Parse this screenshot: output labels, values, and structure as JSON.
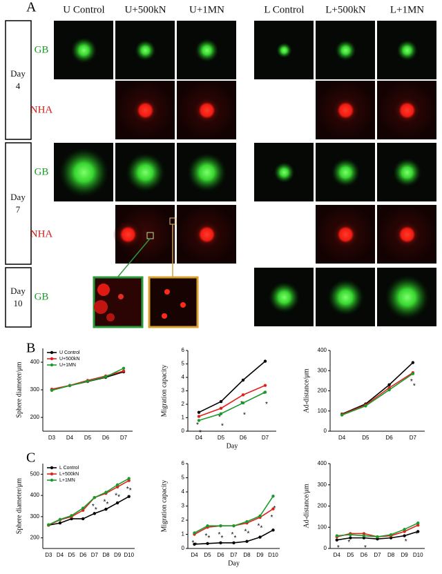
{
  "panel_a": {
    "label": "A",
    "columns": [
      "U Control",
      "U+500kN",
      "U+1MN",
      "L Control",
      "L+500kN",
      "L+1MN"
    ],
    "days": [
      {
        "word": "Day",
        "number": "4"
      },
      {
        "word": "Day",
        "number": "7"
      },
      {
        "word": "Day",
        "number": "10"
      }
    ],
    "channels": [
      "GB",
      "NHA",
      "GB",
      "NHA",
      "GB"
    ]
  },
  "panel_b_label": "B",
  "panel_c_label": "C",
  "chart_data": [
    {
      "type": "line",
      "ylabel": "Sphere diameter/μm",
      "categories": [
        "D3",
        "D4",
        "D5",
        "D6",
        "D7"
      ],
      "ylim": [
        150,
        450
      ],
      "yticks": [
        200,
        300,
        400
      ],
      "legend": "upper left",
      "significance_marker": "*",
      "series": [
        {
          "name": "U Control",
          "color": "#000000",
          "values": [
            300,
            315,
            330,
            345,
            365
          ],
          "significant": []
        },
        {
          "name": "U+500kN",
          "color": "#e0201b",
          "values": [
            302,
            316,
            334,
            350,
            368
          ],
          "significant": []
        },
        {
          "name": "U+1MN",
          "color": "#1a9a2a",
          "values": [
            298,
            315,
            331,
            347,
            378
          ],
          "significant": []
        }
      ]
    },
    {
      "type": "line",
      "ylabel": "Migration capacity",
      "xlabel": "Day",
      "categories": [
        "D4",
        "D5",
        "D6",
        "D7"
      ],
      "ylim": [
        0,
        6
      ],
      "yticks": [
        0,
        1,
        2,
        3,
        4,
        5,
        6
      ],
      "significance_marker": "*",
      "series": [
        {
          "name": "U Control",
          "color": "#000000",
          "values": [
            1.4,
            2.2,
            3.8,
            5.2
          ],
          "significant": []
        },
        {
          "name": "U+500kN",
          "color": "#e0201b",
          "values": [
            1.1,
            1.7,
            2.7,
            3.4
          ],
          "significant": [
            0,
            1,
            2,
            3
          ]
        },
        {
          "name": "U+1MN",
          "color": "#1a9a2a",
          "values": [
            0.8,
            1.3,
            2.1,
            2.9
          ],
          "significant": [
            0,
            1,
            2,
            3
          ]
        }
      ]
    },
    {
      "type": "line",
      "ylabel": "Ad-distance/μm",
      "categories": [
        "D4",
        "D5",
        "D6",
        "D7"
      ],
      "ylim": [
        0,
        400
      ],
      "yticks": [
        0,
        100,
        200,
        300,
        400
      ],
      "significance_marker": "*",
      "series": [
        {
          "name": "U Control",
          "color": "#000000",
          "values": [
            85,
            135,
            230,
            340
          ],
          "significant": []
        },
        {
          "name": "U+500kN",
          "color": "#e0201b",
          "values": [
            83,
            130,
            215,
            290
          ],
          "significant": [
            3
          ]
        },
        {
          "name": "U+1MN",
          "color": "#1a9a2a",
          "values": [
            80,
            125,
            205,
            285
          ],
          "significant": [
            3
          ]
        }
      ]
    },
    {
      "type": "line",
      "ylabel": "Sphere diameter/μm",
      "categories": [
        "D3",
        "D4",
        "D5",
        "D6",
        "D7",
        "D8",
        "D9",
        "D10"
      ],
      "ylim": [
        150,
        550
      ],
      "yticks": [
        200,
        300,
        400,
        500
      ],
      "legend": "upper left",
      "significance_marker": "*",
      "series": [
        {
          "name": "L Control",
          "color": "#000000",
          "values": [
            260,
            270,
            290,
            290,
            315,
            335,
            365,
            395
          ],
          "significant": []
        },
        {
          "name": "L+500kN",
          "color": "#e0201b",
          "values": [
            260,
            285,
            300,
            330,
            390,
            410,
            440,
            470
          ],
          "significant": [
            4,
            5,
            6,
            7
          ]
        },
        {
          "name": "L+1MN",
          "color": "#1a9a2a",
          "values": [
            262,
            287,
            305,
            340,
            390,
            415,
            450,
            480
          ],
          "significant": [
            4,
            5,
            6,
            7
          ]
        }
      ]
    },
    {
      "type": "line",
      "ylabel": "Migration capacity",
      "xlabel": "Day",
      "categories": [
        "D4",
        "D5",
        "D6",
        "D7",
        "D8",
        "D9",
        "D10"
      ],
      "ylim": [
        0,
        6
      ],
      "yticks": [
        0,
        1,
        2,
        3,
        4,
        5,
        6
      ],
      "significance_marker": "*",
      "series": [
        {
          "name": "L Control",
          "color": "#000000",
          "values": [
            0.3,
            0.35,
            0.4,
            0.4,
            0.5,
            0.8,
            1.3
          ],
          "significant": []
        },
        {
          "name": "L+500kN",
          "color": "#e0201b",
          "values": [
            1.0,
            1.5,
            1.6,
            1.6,
            1.8,
            2.2,
            2.8
          ],
          "significant": [
            0,
            1,
            2,
            3,
            4,
            5,
            6
          ]
        },
        {
          "name": "L+1MN",
          "color": "#1a9a2a",
          "values": [
            1.1,
            1.6,
            1.6,
            1.6,
            1.9,
            2.3,
            3.7
          ],
          "significant": [
            0,
            1,
            2,
            3,
            4,
            5,
            6
          ]
        }
      ]
    },
    {
      "type": "line",
      "ylabel": "Ad-distance/μm",
      "categories": [
        "D4",
        "D5",
        "D6",
        "D7",
        "D8",
        "D9",
        "D10"
      ],
      "ylim": [
        0,
        400
      ],
      "yticks": [
        0,
        100,
        200,
        300,
        400
      ],
      "significance_marker": "*",
      "series": [
        {
          "name": "L Control",
          "color": "#000000",
          "values": [
            40,
            50,
            50,
            45,
            50,
            60,
            80
          ],
          "significant": []
        },
        {
          "name": "L+500kN",
          "color": "#e0201b",
          "values": [
            55,
            70,
            70,
            55,
            60,
            80,
            110
          ],
          "significant": [
            1,
            6
          ]
        },
        {
          "name": "L+1MN",
          "color": "#1a9a2a",
          "values": [
            60,
            65,
            60,
            55,
            65,
            90,
            120
          ],
          "significant": [
            0,
            2,
            5
          ]
        }
      ]
    }
  ]
}
